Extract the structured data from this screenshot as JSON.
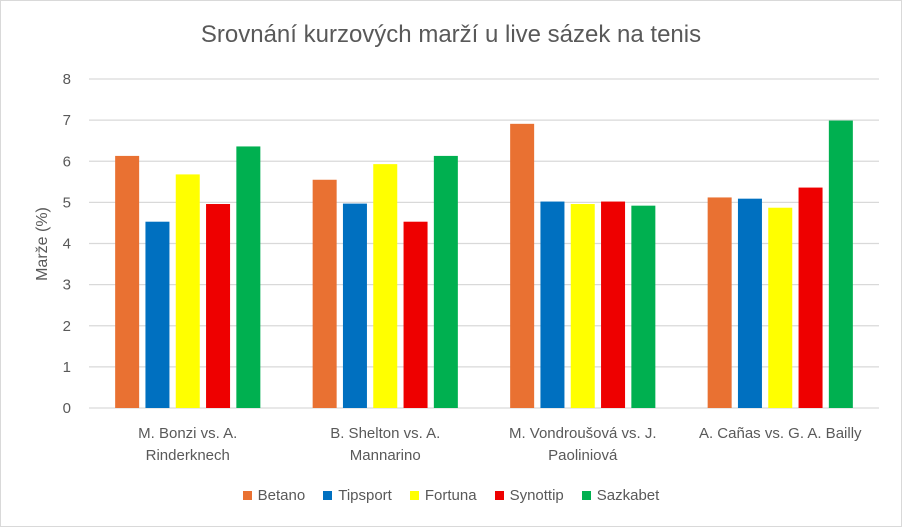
{
  "chart_data": {
    "type": "bar",
    "title": "Srovnání kurzových marží u live sázek na tenis",
    "xlabel": "",
    "ylabel": "Marže (%)",
    "ylim": [
      0,
      8
    ],
    "yticks": [
      "0",
      "1",
      "2",
      "3",
      "4",
      "5",
      "6",
      "7",
      "8"
    ],
    "grid": true,
    "legend_position": "bottom",
    "categories": [
      [
        "M. Bonzi vs. A.",
        "Rinderknech"
      ],
      [
        "B. Shelton vs. A.",
        "Mannarino"
      ],
      [
        "M. Vondroušová vs. J.",
        "Paoliniová"
      ],
      [
        "A. Cañas vs. G. A. Bailly"
      ]
    ],
    "series": [
      {
        "name": "Betano",
        "color": "#E97132",
        "values": [
          6.13,
          5.55,
          6.91,
          5.12
        ]
      },
      {
        "name": "Tipsport",
        "color": "#0070C0",
        "values": [
          4.53,
          4.97,
          5.02,
          5.09
        ]
      },
      {
        "name": "Fortuna",
        "color": "#FFFF00",
        "values": [
          5.68,
          5.93,
          4.96,
          4.87
        ]
      },
      {
        "name": "Synottip",
        "color": "#EE0000",
        "values": [
          4.96,
          4.53,
          5.02,
          5.36
        ]
      },
      {
        "name": "Sazkabet",
        "color": "#00B050",
        "values": [
          6.36,
          6.13,
          4.92,
          6.99
        ]
      }
    ]
  }
}
